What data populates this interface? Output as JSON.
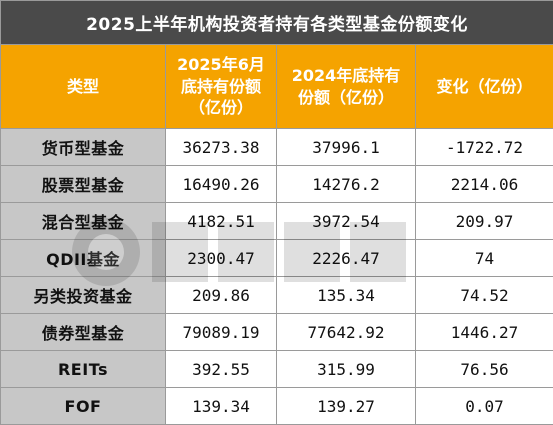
{
  "title": "2025上半年机构投资者持有各类型基金份额变化",
  "headers": {
    "col1": "类型",
    "col2_line1": "2025年6月",
    "col2_line2": "底持有份额",
    "col2_line3": "（亿份）",
    "col3_line1": "2024年底持有",
    "col3_line2": "份额（亿份）",
    "col4": "变化（亿份）"
  },
  "rows": [
    {
      "type": "货币型基金",
      "jun2025": "36273.38",
      "end2024": "37996.1",
      "change": "-1722.72"
    },
    {
      "type": "股票型基金",
      "jun2025": "16490.26",
      "end2024": "14276.2",
      "change": "2214.06"
    },
    {
      "type": "混合型基金",
      "jun2025": "4182.51",
      "end2024": "3972.54",
      "change": "209.97"
    },
    {
      "type": "QDII基金",
      "jun2025": "2300.47",
      "end2024": "2226.47",
      "change": "74"
    },
    {
      "type": "另类投资基金",
      "jun2025": "209.86",
      "end2024": "135.34",
      "change": "74.52"
    },
    {
      "type": "债券型基金",
      "jun2025": "79089.19",
      "end2024": "77642.92",
      "change": "1446.27"
    },
    {
      "type": "REITs",
      "jun2025": "392.55",
      "end2024": "315.99",
      "change": "76.56"
    },
    {
      "type": "FOF",
      "jun2025": "139.34",
      "end2024": "139.27",
      "change": "0.07"
    }
  ],
  "colors": {
    "title_bg": "#4a4a4a",
    "header_bg": "#f5a300",
    "type_bg": "#c7c7c7",
    "border": "#9a9a9a"
  },
  "icons": {
    "watermark": "media-logo-watermark"
  }
}
